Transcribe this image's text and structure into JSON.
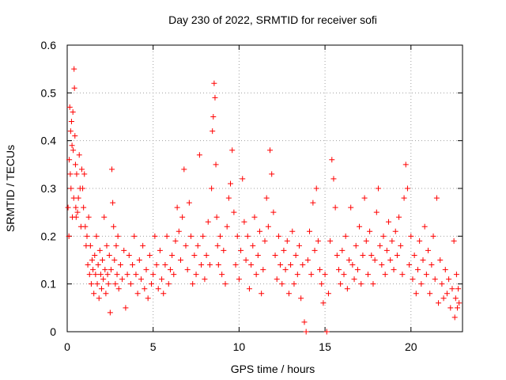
{
  "chart_data": {
    "type": "scatter",
    "title": "Day 230 of 2022, SRMTID for receiver sofi",
    "xlabel": "GPS time / hours",
    "ylabel": "SRMTID / TECUs",
    "xlim": [
      0,
      23
    ],
    "ylim": [
      0,
      0.6
    ],
    "xticks": [
      0,
      5,
      10,
      15,
      20
    ],
    "xtick_labels": [
      "0",
      "5",
      "10",
      "15",
      "20"
    ],
    "yticks": [
      0,
      0.1,
      0.2,
      0.3,
      0.4,
      0.5,
      0.6
    ],
    "ytick_labels": [
      "0",
      "0.1",
      "0.2",
      "0.3",
      "0.4",
      "0.5",
      "0.6"
    ],
    "grid": true,
    "marker": "+",
    "color": "#ff0000",
    "series": [
      {
        "name": "SRMTID",
        "points": [
          [
            0.05,
            0.26
          ],
          [
            0.1,
            0.2
          ],
          [
            0.12,
            0.36
          ],
          [
            0.15,
            0.47
          ],
          [
            0.18,
            0.33
          ],
          [
            0.2,
            0.42
          ],
          [
            0.22,
            0.3
          ],
          [
            0.25,
            0.44
          ],
          [
            0.28,
            0.39
          ],
          [
            0.3,
            0.24
          ],
          [
            0.33,
            0.46
          ],
          [
            0.35,
            0.38
          ],
          [
            0.38,
            0.28
          ],
          [
            0.4,
            0.55
          ],
          [
            0.42,
            0.51
          ],
          [
            0.45,
            0.41
          ],
          [
            0.48,
            0.35
          ],
          [
            0.5,
            0.26
          ],
          [
            0.52,
            0.24
          ],
          [
            0.55,
            0.33
          ],
          [
            0.6,
            0.25
          ],
          [
            0.65,
            0.28
          ],
          [
            0.7,
            0.37
          ],
          [
            0.75,
            0.3
          ],
          [
            0.8,
            0.22
          ],
          [
            0.85,
            0.34
          ],
          [
            0.9,
            0.3
          ],
          [
            0.95,
            0.26
          ],
          [
            1.0,
            0.33
          ],
          [
            1.05,
            0.22
          ],
          [
            1.1,
            0.18
          ],
          [
            1.15,
            0.2
          ],
          [
            1.2,
            0.14
          ],
          [
            1.25,
            0.24
          ],
          [
            1.3,
            0.12
          ],
          [
            1.35,
            0.18
          ],
          [
            1.4,
            0.1
          ],
          [
            1.45,
            0.15
          ],
          [
            1.5,
            0.13
          ],
          [
            1.55,
            0.08
          ],
          [
            1.6,
            0.16
          ],
          [
            1.65,
            0.12
          ],
          [
            1.7,
            0.2
          ],
          [
            1.75,
            0.1
          ],
          [
            1.8,
            0.14
          ],
          [
            1.85,
            0.07
          ],
          [
            1.9,
            0.17
          ],
          [
            1.95,
            0.12
          ],
          [
            2.0,
            0.09
          ],
          [
            2.05,
            0.15
          ],
          [
            2.1,
            0.11
          ],
          [
            2.15,
            0.24
          ],
          [
            2.2,
            0.13
          ],
          [
            2.25,
            0.08
          ],
          [
            2.3,
            0.18
          ],
          [
            2.35,
            0.12
          ],
          [
            2.4,
            0.1
          ],
          [
            2.45,
            0.16
          ],
          [
            2.5,
            0.04
          ],
          [
            2.55,
            0.13
          ],
          [
            2.6,
            0.34
          ],
          [
            2.65,
            0.27
          ],
          [
            2.7,
            0.22
          ],
          [
            2.75,
            0.15
          ],
          [
            2.8,
            0.1
          ],
          [
            2.85,
            0.18
          ],
          [
            2.9,
            0.12
          ],
          [
            2.95,
            0.2
          ],
          [
            3.0,
            0.09
          ],
          [
            3.1,
            0.14
          ],
          [
            3.2,
            0.11
          ],
          [
            3.3,
            0.17
          ],
          [
            3.4,
            0.05
          ],
          [
            3.5,
            0.12
          ],
          [
            3.6,
            0.16
          ],
          [
            3.7,
            0.1
          ],
          [
            3.8,
            0.14
          ],
          [
            3.9,
            0.2
          ],
          [
            4.0,
            0.12
          ],
          [
            4.1,
            0.08
          ],
          [
            4.2,
            0.15
          ],
          [
            4.3,
            0.11
          ],
          [
            4.4,
            0.18
          ],
          [
            4.5,
            0.09
          ],
          [
            4.6,
            0.13
          ],
          [
            4.7,
            0.07
          ],
          [
            4.8,
            0.16
          ],
          [
            4.9,
            0.1
          ],
          [
            5.0,
            0.12
          ],
          [
            5.1,
            0.2
          ],
          [
            5.2,
            0.14
          ],
          [
            5.3,
            0.09
          ],
          [
            5.4,
            0.17
          ],
          [
            5.5,
            0.11
          ],
          [
            5.6,
            0.08
          ],
          [
            5.7,
            0.14
          ],
          [
            5.8,
            0.2
          ],
          [
            5.9,
            0.1
          ],
          [
            6.0,
            0.13
          ],
          [
            6.1,
            0.16
          ],
          [
            6.2,
            0.12
          ],
          [
            6.3,
            0.19
          ],
          [
            6.4,
            0.26
          ],
          [
            6.5,
            0.21
          ],
          [
            6.6,
            0.15
          ],
          [
            6.7,
            0.24
          ],
          [
            6.8,
            0.34
          ],
          [
            6.9,
            0.18
          ],
          [
            7.0,
            0.13
          ],
          [
            7.1,
            0.27
          ],
          [
            7.2,
            0.2
          ],
          [
            7.3,
            0.1
          ],
          [
            7.4,
            0.16
          ],
          [
            7.5,
            0.12
          ],
          [
            7.6,
            0.18
          ],
          [
            7.7,
            0.37
          ],
          [
            7.8,
            0.14
          ],
          [
            7.9,
            0.2
          ],
          [
            8.0,
            0.11
          ],
          [
            8.1,
            0.16
          ],
          [
            8.2,
            0.23
          ],
          [
            8.3,
            0.14
          ],
          [
            8.4,
            0.3
          ],
          [
            8.45,
            0.42
          ],
          [
            8.5,
            0.45
          ],
          [
            8.55,
            0.52
          ],
          [
            8.6,
            0.49
          ],
          [
            8.65,
            0.35
          ],
          [
            8.7,
            0.24
          ],
          [
            8.75,
            0.18
          ],
          [
            8.8,
            0.14
          ],
          [
            8.9,
            0.2
          ],
          [
            9.0,
            0.12
          ],
          [
            9.1,
            0.17
          ],
          [
            9.2,
            0.1
          ],
          [
            9.3,
            0.22
          ],
          [
            9.4,
            0.28
          ],
          [
            9.5,
            0.31
          ],
          [
            9.6,
            0.38
          ],
          [
            9.7,
            0.25
          ],
          [
            9.8,
            0.14
          ],
          [
            9.9,
            0.2
          ],
          [
            10.0,
            0.11
          ],
          [
            10.1,
            0.17
          ],
          [
            10.2,
            0.32
          ],
          [
            10.3,
            0.23
          ],
          [
            10.4,
            0.15
          ],
          [
            10.5,
            0.2
          ],
          [
            10.6,
            0.09
          ],
          [
            10.7,
            0.14
          ],
          [
            10.8,
            0.18
          ],
          [
            10.9,
            0.24
          ],
          [
            11.0,
            0.12
          ],
          [
            11.1,
            0.16
          ],
          [
            11.2,
            0.21
          ],
          [
            11.3,
            0.08
          ],
          [
            11.4,
            0.13
          ],
          [
            11.5,
            0.19
          ],
          [
            11.6,
            0.28
          ],
          [
            11.7,
            0.22
          ],
          [
            11.8,
            0.38
          ],
          [
            11.9,
            0.33
          ],
          [
            12.0,
            0.25
          ],
          [
            12.1,
            0.16
          ],
          [
            12.2,
            0.11
          ],
          [
            12.3,
            0.2
          ],
          [
            12.4,
            0.14
          ],
          [
            12.5,
            0.1
          ],
          [
            12.6,
            0.17
          ],
          [
            12.7,
            0.13
          ],
          [
            12.8,
            0.19
          ],
          [
            12.9,
            0.08
          ],
          [
            13.0,
            0.14
          ],
          [
            13.1,
            0.21
          ],
          [
            13.2,
            0.1
          ],
          [
            13.3,
            0.16
          ],
          [
            13.4,
            0.12
          ],
          [
            13.5,
            0.18
          ],
          [
            13.6,
            0.07
          ],
          [
            13.7,
            0.14
          ],
          [
            13.8,
            0.02
          ],
          [
            13.9,
            0.0
          ],
          [
            14.0,
            0.15
          ],
          [
            14.1,
            0.21
          ],
          [
            14.2,
            0.12
          ],
          [
            14.3,
            0.27
          ],
          [
            14.4,
            0.17
          ],
          [
            14.5,
            0.3
          ],
          [
            14.6,
            0.19
          ],
          [
            14.7,
            0.13
          ],
          [
            14.8,
            0.1
          ],
          [
            14.9,
            0.06
          ],
          [
            15.0,
            0.12
          ],
          [
            15.1,
            0.0
          ],
          [
            15.2,
            0.08
          ],
          [
            15.3,
            0.19
          ],
          [
            15.4,
            0.36
          ],
          [
            15.5,
            0.32
          ],
          [
            15.6,
            0.26
          ],
          [
            15.7,
            0.16
          ],
          [
            15.8,
            0.13
          ],
          [
            15.9,
            0.1
          ],
          [
            16.0,
            0.17
          ],
          [
            16.1,
            0.12
          ],
          [
            16.2,
            0.2
          ],
          [
            16.3,
            0.09
          ],
          [
            16.4,
            0.15
          ],
          [
            16.5,
            0.26
          ],
          [
            16.6,
            0.14
          ],
          [
            16.7,
            0.11
          ],
          [
            16.8,
            0.18
          ],
          [
            16.9,
            0.13
          ],
          [
            17.0,
            0.22
          ],
          [
            17.1,
            0.1
          ],
          [
            17.2,
            0.16
          ],
          [
            17.3,
            0.28
          ],
          [
            17.4,
            0.19
          ],
          [
            17.5,
            0.12
          ],
          [
            17.6,
            0.21
          ],
          [
            17.7,
            0.16
          ],
          [
            17.8,
            0.1
          ],
          [
            17.9,
            0.15
          ],
          [
            18.0,
            0.25
          ],
          [
            18.1,
            0.3
          ],
          [
            18.2,
            0.18
          ],
          [
            18.3,
            0.14
          ],
          [
            18.4,
            0.2
          ],
          [
            18.5,
            0.12
          ],
          [
            18.6,
            0.17
          ],
          [
            18.7,
            0.23
          ],
          [
            18.8,
            0.15
          ],
          [
            18.9,
            0.19
          ],
          [
            19.0,
            0.13
          ],
          [
            19.1,
            0.21
          ],
          [
            19.2,
            0.16
          ],
          [
            19.3,
            0.24
          ],
          [
            19.4,
            0.18
          ],
          [
            19.5,
            0.12
          ],
          [
            19.6,
            0.28
          ],
          [
            19.7,
            0.35
          ],
          [
            19.8,
            0.3
          ],
          [
            19.9,
            0.14
          ],
          [
            20.0,
            0.2
          ],
          [
            20.1,
            0.11
          ],
          [
            20.2,
            0.16
          ],
          [
            20.3,
            0.08
          ],
          [
            20.4,
            0.13
          ],
          [
            20.5,
            0.19
          ],
          [
            20.6,
            0.1
          ],
          [
            20.7,
            0.15
          ],
          [
            20.8,
            0.22
          ],
          [
            20.9,
            0.12
          ],
          [
            21.0,
            0.17
          ],
          [
            21.1,
            0.08
          ],
          [
            21.2,
            0.14
          ],
          [
            21.3,
            0.2
          ],
          [
            21.4,
            0.11
          ],
          [
            21.5,
            0.28
          ],
          [
            21.6,
            0.06
          ],
          [
            21.7,
            0.15
          ],
          [
            21.8,
            0.1
          ],
          [
            21.9,
            0.07
          ],
          [
            22.0,
            0.13
          ],
          [
            22.1,
            0.08
          ],
          [
            22.2,
            0.11
          ],
          [
            22.3,
            0.05
          ],
          [
            22.4,
            0.09
          ],
          [
            22.5,
            0.19
          ],
          [
            22.55,
            0.03
          ],
          [
            22.6,
            0.07
          ],
          [
            22.65,
            0.12
          ],
          [
            22.7,
            0.05
          ],
          [
            22.75,
            0.09
          ],
          [
            22.8,
            0.06
          ]
        ]
      }
    ]
  }
}
